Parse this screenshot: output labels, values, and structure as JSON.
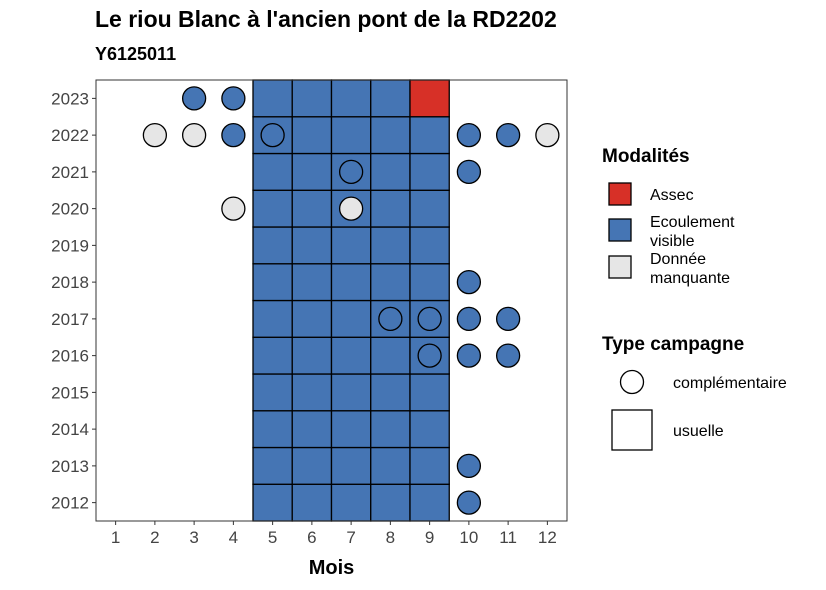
{
  "chart_data": {
    "type": "heatmap",
    "title": "Le riou Blanc à l'ancien pont de la RD2202",
    "subtitle": "Y6125011",
    "xlabel": "Mois",
    "ylabel": "",
    "x_ticks": [
      "1",
      "2",
      "3",
      "4",
      "5",
      "6",
      "7",
      "8",
      "9",
      "10",
      "11",
      "12"
    ],
    "y_ticks": [
      "2012",
      "2013",
      "2014",
      "2015",
      "2016",
      "2017",
      "2018",
      "2019",
      "2020",
      "2021",
      "2022",
      "2023"
    ],
    "xlim": [
      0.5,
      12.5
    ],
    "ylim": [
      2011.5,
      2023.5
    ],
    "grid": false,
    "colors": {
      "Assec": "#D73027",
      "Ecoulement visible": "#4575B4",
      "Donnée manquante": "#E6E6E6"
    },
    "legend_modalites": {
      "title": "Modalités",
      "items": [
        {
          "label_lines": [
            "Assec"
          ],
          "key": "Assec"
        },
        {
          "label_lines": [
            "Ecoulement",
            "visible"
          ],
          "key": "Ecoulement visible"
        },
        {
          "label_lines": [
            "Donnée",
            "manquante"
          ],
          "key": "Donnée manquante"
        }
      ]
    },
    "legend_type": {
      "title": "Type campagne",
      "items": [
        {
          "label": "complémentaire",
          "shape": "circle"
        },
        {
          "label": "usuelle",
          "shape": "square"
        }
      ]
    },
    "observations": [
      {
        "year": 2012,
        "month": 5,
        "modalite": "Ecoulement visible",
        "type": "usuelle"
      },
      {
        "year": 2012,
        "month": 6,
        "modalite": "Ecoulement visible",
        "type": "usuelle"
      },
      {
        "year": 2012,
        "month": 7,
        "modalite": "Ecoulement visible",
        "type": "usuelle"
      },
      {
        "year": 2012,
        "month": 8,
        "modalite": "Ecoulement visible",
        "type": "usuelle"
      },
      {
        "year": 2012,
        "month": 9,
        "modalite": "Ecoulement visible",
        "type": "usuelle"
      },
      {
        "year": 2012,
        "month": 10,
        "modalite": "Ecoulement visible",
        "type": "complémentaire"
      },
      {
        "year": 2013,
        "month": 5,
        "modalite": "Ecoulement visible",
        "type": "usuelle"
      },
      {
        "year": 2013,
        "month": 6,
        "modalite": "Ecoulement visible",
        "type": "usuelle"
      },
      {
        "year": 2013,
        "month": 7,
        "modalite": "Ecoulement visible",
        "type": "usuelle"
      },
      {
        "year": 2013,
        "month": 8,
        "modalite": "Ecoulement visible",
        "type": "usuelle"
      },
      {
        "year": 2013,
        "month": 9,
        "modalite": "Ecoulement visible",
        "type": "usuelle"
      },
      {
        "year": 2013,
        "month": 10,
        "modalite": "Ecoulement visible",
        "type": "complémentaire"
      },
      {
        "year": 2014,
        "month": 5,
        "modalite": "Ecoulement visible",
        "type": "usuelle"
      },
      {
        "year": 2014,
        "month": 6,
        "modalite": "Ecoulement visible",
        "type": "usuelle"
      },
      {
        "year": 2014,
        "month": 7,
        "modalite": "Ecoulement visible",
        "type": "usuelle"
      },
      {
        "year": 2014,
        "month": 8,
        "modalite": "Ecoulement visible",
        "type": "usuelle"
      },
      {
        "year": 2014,
        "month": 9,
        "modalite": "Ecoulement visible",
        "type": "usuelle"
      },
      {
        "year": 2015,
        "month": 5,
        "modalite": "Ecoulement visible",
        "type": "usuelle"
      },
      {
        "year": 2015,
        "month": 6,
        "modalite": "Ecoulement visible",
        "type": "usuelle"
      },
      {
        "year": 2015,
        "month": 7,
        "modalite": "Ecoulement visible",
        "type": "usuelle"
      },
      {
        "year": 2015,
        "month": 8,
        "modalite": "Ecoulement visible",
        "type": "usuelle"
      },
      {
        "year": 2015,
        "month": 9,
        "modalite": "Ecoulement visible",
        "type": "usuelle"
      },
      {
        "year": 2016,
        "month": 5,
        "modalite": "Ecoulement visible",
        "type": "usuelle"
      },
      {
        "year": 2016,
        "month": 6,
        "modalite": "Ecoulement visible",
        "type": "usuelle"
      },
      {
        "year": 2016,
        "month": 7,
        "modalite": "Ecoulement visible",
        "type": "usuelle"
      },
      {
        "year": 2016,
        "month": 8,
        "modalite": "Ecoulement visible",
        "type": "usuelle"
      },
      {
        "year": 2016,
        "month": 9,
        "modalite": "Ecoulement visible",
        "type": "usuelle"
      },
      {
        "year": 2016,
        "month": 9,
        "modalite": "Ecoulement visible",
        "type": "complémentaire"
      },
      {
        "year": 2016,
        "month": 10,
        "modalite": "Ecoulement visible",
        "type": "complémentaire"
      },
      {
        "year": 2016,
        "month": 11,
        "modalite": "Ecoulement visible",
        "type": "complémentaire"
      },
      {
        "year": 2017,
        "month": 5,
        "modalite": "Ecoulement visible",
        "type": "usuelle"
      },
      {
        "year": 2017,
        "month": 6,
        "modalite": "Ecoulement visible",
        "type": "usuelle"
      },
      {
        "year": 2017,
        "month": 7,
        "modalite": "Ecoulement visible",
        "type": "usuelle"
      },
      {
        "year": 2017,
        "month": 8,
        "modalite": "Ecoulement visible",
        "type": "usuelle"
      },
      {
        "year": 2017,
        "month": 9,
        "modalite": "Ecoulement visible",
        "type": "usuelle"
      },
      {
        "year": 2017,
        "month": 8,
        "modalite": "Ecoulement visible",
        "type": "complémentaire"
      },
      {
        "year": 2017,
        "month": 9,
        "modalite": "Ecoulement visible",
        "type": "complémentaire"
      },
      {
        "year": 2017,
        "month": 10,
        "modalite": "Ecoulement visible",
        "type": "complémentaire"
      },
      {
        "year": 2017,
        "month": 11,
        "modalite": "Ecoulement visible",
        "type": "complémentaire"
      },
      {
        "year": 2018,
        "month": 5,
        "modalite": "Ecoulement visible",
        "type": "usuelle"
      },
      {
        "year": 2018,
        "month": 6,
        "modalite": "Ecoulement visible",
        "type": "usuelle"
      },
      {
        "year": 2018,
        "month": 7,
        "modalite": "Ecoulement visible",
        "type": "usuelle"
      },
      {
        "year": 2018,
        "month": 8,
        "modalite": "Ecoulement visible",
        "type": "usuelle"
      },
      {
        "year": 2018,
        "month": 9,
        "modalite": "Ecoulement visible",
        "type": "usuelle"
      },
      {
        "year": 2018,
        "month": 10,
        "modalite": "Ecoulement visible",
        "type": "complémentaire"
      },
      {
        "year": 2019,
        "month": 5,
        "modalite": "Ecoulement visible",
        "type": "usuelle"
      },
      {
        "year": 2019,
        "month": 6,
        "modalite": "Ecoulement visible",
        "type": "usuelle"
      },
      {
        "year": 2019,
        "month": 7,
        "modalite": "Ecoulement visible",
        "type": "usuelle"
      },
      {
        "year": 2019,
        "month": 8,
        "modalite": "Ecoulement visible",
        "type": "usuelle"
      },
      {
        "year": 2019,
        "month": 9,
        "modalite": "Ecoulement visible",
        "type": "usuelle"
      },
      {
        "year": 2020,
        "month": 5,
        "modalite": "Ecoulement visible",
        "type": "usuelle"
      },
      {
        "year": 2020,
        "month": 6,
        "modalite": "Ecoulement visible",
        "type": "usuelle"
      },
      {
        "year": 2020,
        "month": 7,
        "modalite": "Ecoulement visible",
        "type": "usuelle"
      },
      {
        "year": 2020,
        "month": 8,
        "modalite": "Ecoulement visible",
        "type": "usuelle"
      },
      {
        "year": 2020,
        "month": 9,
        "modalite": "Ecoulement visible",
        "type": "usuelle"
      },
      {
        "year": 2020,
        "month": 4,
        "modalite": "Donnée manquante",
        "type": "complémentaire"
      },
      {
        "year": 2020,
        "month": 7,
        "modalite": "Donnée manquante",
        "type": "complémentaire"
      },
      {
        "year": 2021,
        "month": 5,
        "modalite": "Ecoulement visible",
        "type": "usuelle"
      },
      {
        "year": 2021,
        "month": 6,
        "modalite": "Ecoulement visible",
        "type": "usuelle"
      },
      {
        "year": 2021,
        "month": 7,
        "modalite": "Ecoulement visible",
        "type": "usuelle"
      },
      {
        "year": 2021,
        "month": 8,
        "modalite": "Ecoulement visible",
        "type": "usuelle"
      },
      {
        "year": 2021,
        "month": 9,
        "modalite": "Ecoulement visible",
        "type": "usuelle"
      },
      {
        "year": 2021,
        "month": 7,
        "modalite": "Ecoulement visible",
        "type": "complémentaire"
      },
      {
        "year": 2021,
        "month": 10,
        "modalite": "Ecoulement visible",
        "type": "complémentaire"
      },
      {
        "year": 2022,
        "month": 5,
        "modalite": "Ecoulement visible",
        "type": "usuelle"
      },
      {
        "year": 2022,
        "month": 6,
        "modalite": "Ecoulement visible",
        "type": "usuelle"
      },
      {
        "year": 2022,
        "month": 7,
        "modalite": "Ecoulement visible",
        "type": "usuelle"
      },
      {
        "year": 2022,
        "month": 8,
        "modalite": "Ecoulement visible",
        "type": "usuelle"
      },
      {
        "year": 2022,
        "month": 9,
        "modalite": "Ecoulement visible",
        "type": "usuelle"
      },
      {
        "year": 2022,
        "month": 2,
        "modalite": "Donnée manquante",
        "type": "complémentaire"
      },
      {
        "year": 2022,
        "month": 3,
        "modalite": "Donnée manquante",
        "type": "complémentaire"
      },
      {
        "year": 2022,
        "month": 4,
        "modalite": "Ecoulement visible",
        "type": "complémentaire"
      },
      {
        "year": 2022,
        "month": 5,
        "modalite": "Ecoulement visible",
        "type": "complémentaire"
      },
      {
        "year": 2022,
        "month": 10,
        "modalite": "Ecoulement visible",
        "type": "complémentaire"
      },
      {
        "year": 2022,
        "month": 11,
        "modalite": "Ecoulement visible",
        "type": "complémentaire"
      },
      {
        "year": 2022,
        "month": 12,
        "modalite": "Donnée manquante",
        "type": "complémentaire"
      },
      {
        "year": 2023,
        "month": 5,
        "modalite": "Ecoulement visible",
        "type": "usuelle"
      },
      {
        "year": 2023,
        "month": 6,
        "modalite": "Ecoulement visible",
        "type": "usuelle"
      },
      {
        "year": 2023,
        "month": 7,
        "modalite": "Ecoulement visible",
        "type": "usuelle"
      },
      {
        "year": 2023,
        "month": 8,
        "modalite": "Ecoulement visible",
        "type": "usuelle"
      },
      {
        "year": 2023,
        "month": 9,
        "modalite": "Assec",
        "type": "usuelle"
      },
      {
        "year": 2023,
        "month": 3,
        "modalite": "Ecoulement visible",
        "type": "complémentaire"
      },
      {
        "year": 2023,
        "month": 4,
        "modalite": "Ecoulement visible",
        "type": "complémentaire"
      }
    ]
  }
}
